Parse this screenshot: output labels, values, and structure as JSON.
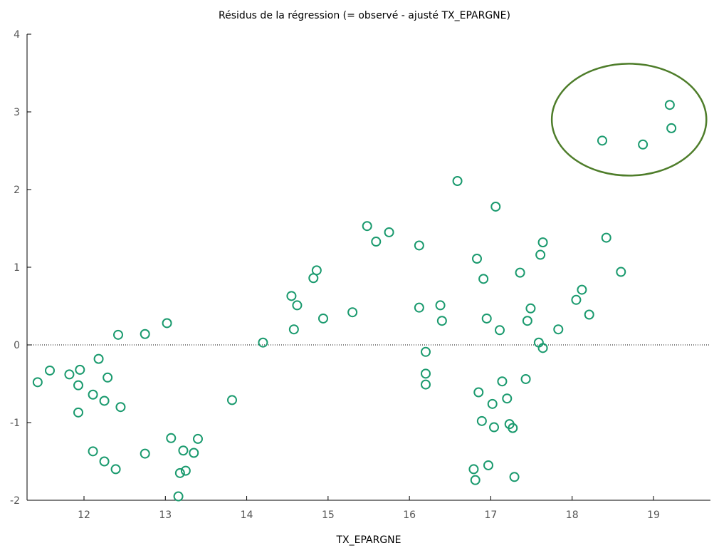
{
  "chart_data": {
    "type": "scatter",
    "title": "Résidus de la régression (= observé - ajusté TX_EPARGNE)",
    "xlabel": "TX_EPARGNE",
    "ylabel": "",
    "xlim": [
      11.3,
      19.7
    ],
    "ylim": [
      -2,
      4
    ],
    "xticks": [
      "12",
      "13",
      "14",
      "15",
      "16",
      "17",
      "18",
      "19"
    ],
    "yticks": [
      "-2",
      "-1",
      "0",
      "1",
      "2",
      "3",
      "4"
    ],
    "xtick_values": [
      12,
      13,
      14,
      15,
      16,
      17,
      18,
      19
    ],
    "ytick_values": [
      -2,
      -1,
      0,
      1,
      2,
      3,
      4
    ],
    "grid": false,
    "reference_line": {
      "y": 0,
      "style": "dotted"
    },
    "marker": {
      "shape": "hollow-circle",
      "color": "#1a9a6e"
    },
    "highlight_ellipse": {
      "color": "#4e7d2a",
      "center": [
        18.7,
        2.9
      ],
      "radius_x": 0.95,
      "radius_y": 0.72
    },
    "points": [
      {
        "x": 11.43,
        "y": -0.48
      },
      {
        "x": 11.58,
        "y": -0.33
      },
      {
        "x": 11.82,
        "y": -0.38
      },
      {
        "x": 11.93,
        "y": -0.52
      },
      {
        "x": 11.95,
        "y": -0.32
      },
      {
        "x": 11.93,
        "y": -0.87
      },
      {
        "x": 12.11,
        "y": -0.64
      },
      {
        "x": 12.11,
        "y": -1.37
      },
      {
        "x": 12.18,
        "y": -0.18
      },
      {
        "x": 12.25,
        "y": -0.72
      },
      {
        "x": 12.25,
        "y": -1.5
      },
      {
        "x": 12.29,
        "y": -0.42
      },
      {
        "x": 12.39,
        "y": -1.6
      },
      {
        "x": 12.42,
        "y": 0.13
      },
      {
        "x": 12.45,
        "y": -0.8
      },
      {
        "x": 12.75,
        "y": 0.14
      },
      {
        "x": 12.75,
        "y": -1.4
      },
      {
        "x": 13.02,
        "y": 0.28
      },
      {
        "x": 13.07,
        "y": -1.2
      },
      {
        "x": 13.16,
        "y": -1.95
      },
      {
        "x": 13.18,
        "y": -1.65
      },
      {
        "x": 13.22,
        "y": -1.36
      },
      {
        "x": 13.25,
        "y": -1.62
      },
      {
        "x": 13.35,
        "y": -1.39
      },
      {
        "x": 13.4,
        "y": -1.21
      },
      {
        "x": 13.82,
        "y": -0.71
      },
      {
        "x": 14.2,
        "y": 0.03
      },
      {
        "x": 14.55,
        "y": 0.63
      },
      {
        "x": 14.58,
        "y": 0.2
      },
      {
        "x": 14.62,
        "y": 0.51
      },
      {
        "x": 14.82,
        "y": 0.86
      },
      {
        "x": 14.86,
        "y": 0.96
      },
      {
        "x": 14.94,
        "y": 0.34
      },
      {
        "x": 15.3,
        "y": 0.42
      },
      {
        "x": 15.48,
        "y": 1.53
      },
      {
        "x": 15.59,
        "y": 1.33
      },
      {
        "x": 15.75,
        "y": 1.45
      },
      {
        "x": 16.12,
        "y": 1.28
      },
      {
        "x": 16.12,
        "y": 0.48
      },
      {
        "x": 16.2,
        "y": -0.09
      },
      {
        "x": 16.2,
        "y": -0.37
      },
      {
        "x": 16.2,
        "y": -0.51
      },
      {
        "x": 16.38,
        "y": 0.51
      },
      {
        "x": 16.4,
        "y": 0.31
      },
      {
        "x": 16.59,
        "y": 2.11
      },
      {
        "x": 16.79,
        "y": -1.6
      },
      {
        "x": 16.81,
        "y": -1.74
      },
      {
        "x": 16.83,
        "y": 1.11
      },
      {
        "x": 16.85,
        "y": -0.61
      },
      {
        "x": 16.89,
        "y": -0.98
      },
      {
        "x": 16.91,
        "y": 0.85
      },
      {
        "x": 16.95,
        "y": 0.34
      },
      {
        "x": 16.97,
        "y": -1.55
      },
      {
        "x": 17.02,
        "y": -0.76
      },
      {
        "x": 17.04,
        "y": -1.06
      },
      {
        "x": 17.06,
        "y": 1.78
      },
      {
        "x": 17.11,
        "y": 0.19
      },
      {
        "x": 17.14,
        "y": -0.47
      },
      {
        "x": 17.2,
        "y": -0.69
      },
      {
        "x": 17.23,
        "y": -1.02
      },
      {
        "x": 17.27,
        "y": -1.07
      },
      {
        "x": 17.29,
        "y": -1.7
      },
      {
        "x": 17.36,
        "y": 0.93
      },
      {
        "x": 17.43,
        "y": -0.44
      },
      {
        "x": 17.45,
        "y": 0.31
      },
      {
        "x": 17.49,
        "y": 0.47
      },
      {
        "x": 17.59,
        "y": 0.03
      },
      {
        "x": 17.61,
        "y": 1.16
      },
      {
        "x": 17.64,
        "y": 1.32
      },
      {
        "x": 17.64,
        "y": -0.04
      },
      {
        "x": 17.83,
        "y": 0.2
      },
      {
        "x": 18.05,
        "y": 0.58
      },
      {
        "x": 18.12,
        "y": 0.71
      },
      {
        "x": 18.21,
        "y": 0.39
      },
      {
        "x": 18.37,
        "y": 2.63
      },
      {
        "x": 18.42,
        "y": 1.38
      },
      {
        "x": 18.6,
        "y": 0.94
      },
      {
        "x": 18.87,
        "y": 2.58
      },
      {
        "x": 19.2,
        "y": 3.09
      },
      {
        "x": 19.22,
        "y": 2.79
      }
    ]
  }
}
